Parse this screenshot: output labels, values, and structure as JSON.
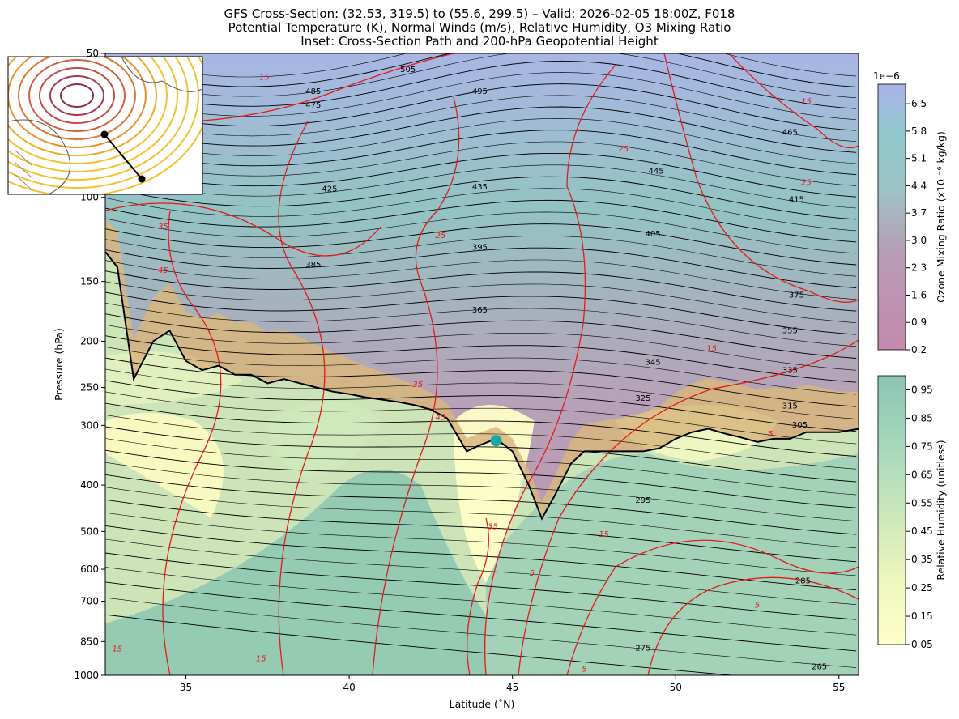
{
  "title_lines": [
    "GFS Cross-Section: (32.53, 319.5) to (55.6, 299.5) – Valid: 2026-02-05 18:00Z, F018",
    "Potential Temperature (K), Normal Winds (m/s), Relative Humidity, O3 Mixing Ratio",
    "Inset: Cross-Section Path and 200-hPa Geopotential Height"
  ],
  "colors": {
    "theta": "#000000",
    "wind": "#e31a1c",
    "rh_low": "#ffffcc",
    "rh_high": "#5ea99a",
    "ozone_low": "#c08bb0",
    "ozone_high": "#aab4e6"
  },
  "chart_data": {
    "type": "cross-section",
    "xlabel": "Latitude (˚N)",
    "ylabel": "Pressure (hPa)",
    "xlim": [
      32.53,
      55.6
    ],
    "ylim": [
      1000,
      50
    ],
    "y_scale": "log",
    "x_ticks": [
      35,
      40,
      45,
      50,
      55
    ],
    "y_ticks": [
      50,
      100,
      150,
      200,
      250,
      300,
      400,
      500,
      600,
      700,
      850,
      1000
    ],
    "theta_labels": [
      {
        "value": "505",
        "lat": 41.8,
        "p": 54
      },
      {
        "value": "495",
        "lat": 44.0,
        "p": 60
      },
      {
        "value": "485",
        "lat": 38.9,
        "p": 60
      },
      {
        "value": "475",
        "lat": 38.9,
        "p": 64
      },
      {
        "value": "465",
        "lat": 53.5,
        "p": 73
      },
      {
        "value": "445",
        "lat": 49.4,
        "p": 88
      },
      {
        "value": "435",
        "lat": 44.0,
        "p": 95
      },
      {
        "value": "425",
        "lat": 39.4,
        "p": 96
      },
      {
        "value": "415",
        "lat": 53.7,
        "p": 101
      },
      {
        "value": "405",
        "lat": 49.3,
        "p": 119
      },
      {
        "value": "395",
        "lat": 44.0,
        "p": 127
      },
      {
        "value": "385",
        "lat": 38.9,
        "p": 138
      },
      {
        "value": "375",
        "lat": 53.7,
        "p": 160
      },
      {
        "value": "365",
        "lat": 44.0,
        "p": 172
      },
      {
        "value": "355",
        "lat": 53.5,
        "p": 190
      },
      {
        "value": "345",
        "lat": 49.3,
        "p": 221
      },
      {
        "value": "335",
        "lat": 53.5,
        "p": 230
      },
      {
        "value": "325",
        "lat": 49.0,
        "p": 263
      },
      {
        "value": "315",
        "lat": 53.5,
        "p": 273
      },
      {
        "value": "305",
        "lat": 53.8,
        "p": 299
      },
      {
        "value": "295",
        "lat": 49.0,
        "p": 430
      },
      {
        "value": "285",
        "lat": 53.9,
        "p": 633
      },
      {
        "value": "275",
        "lat": 49.0,
        "p": 875
      },
      {
        "value": "265",
        "lat": 54.4,
        "p": 958
      }
    ],
    "wind_labels": [
      {
        "value": "15",
        "lat": 37.4,
        "p": 56
      },
      {
        "value": "15",
        "lat": 54.0,
        "p": 63
      },
      {
        "value": "25",
        "lat": 48.4,
        "p": 79
      },
      {
        "value": "25",
        "lat": 54.0,
        "p": 93
      },
      {
        "value": "35",
        "lat": 34.3,
        "p": 115
      },
      {
        "value": "25",
        "lat": 42.8,
        "p": 120
      },
      {
        "value": "45",
        "lat": 34.3,
        "p": 142
      },
      {
        "value": "15",
        "lat": 51.1,
        "p": 207
      },
      {
        "value": "35",
        "lat": 42.1,
        "p": 246
      },
      {
        "value": "45",
        "lat": 42.8,
        "p": 288
      },
      {
        "value": "5",
        "lat": 52.9,
        "p": 312
      },
      {
        "value": "35",
        "lat": 44.4,
        "p": 488
      },
      {
        "value": "15",
        "lat": 47.8,
        "p": 506
      },
      {
        "value": "5",
        "lat": 45.6,
        "p": 610
      },
      {
        "value": "5",
        "lat": 52.5,
        "p": 712
      },
      {
        "value": "15",
        "lat": 32.9,
        "p": 880
      },
      {
        "value": "15",
        "lat": 37.3,
        "p": 922
      },
      {
        "value": "5",
        "lat": 47.2,
        "p": 970
      }
    ],
    "tropopause": {
      "lat": [
        32.53,
        32.9,
        33.4,
        34.0,
        34.5,
        35.0,
        35.5,
        36.0,
        36.5,
        37.0,
        37.5,
        38.0,
        38.5,
        39.0,
        39.5,
        40.0,
        40.5,
        41.0,
        41.5,
        42.0,
        42.5,
        43.0,
        43.6,
        44.0,
        44.5,
        45.0,
        45.5,
        45.9,
        46.3,
        46.8,
        47.2,
        47.8,
        48.5,
        49.0,
        49.5,
        50.0,
        50.5,
        51.0,
        51.5,
        52.0,
        52.5,
        53.0,
        53.5,
        54.0,
        54.5,
        55.0,
        55.6
      ],
      "p": [
        130,
        140,
        240,
        200,
        190,
        220,
        230,
        225,
        235,
        235,
        245,
        240,
        245,
        250,
        255,
        258,
        262,
        265,
        268,
        272,
        278,
        290,
        340,
        330,
        320,
        340,
        400,
        470,
        420,
        360,
        340,
        340,
        340,
        340,
        335,
        320,
        310,
        305,
        312,
        318,
        325,
        320,
        320,
        310,
        310,
        310,
        305
      ]
    },
    "marker": {
      "lat": 44.5,
      "p": 323
    },
    "colorbars": [
      {
        "label": "Ozone Mixing Ratio (x10 ⁻⁶ kg/kg)",
        "offset_label": "1e−6",
        "ticks": [
          "0.2",
          "0.9",
          "1.6",
          "2.3",
          "3.0",
          "3.7",
          "4.4",
          "5.1",
          "5.8",
          "6.5"
        ],
        "range": [
          0.2,
          7.0
        ]
      },
      {
        "label": "Relative Humidity (unitless)",
        "ticks": [
          "0.05",
          "0.15",
          "0.25",
          "0.35",
          "0.45",
          "0.55",
          "0.65",
          "0.75",
          "0.85",
          "0.95"
        ],
        "range": [
          0.05,
          1.0
        ]
      }
    ],
    "inset": {
      "path": [
        {
          "lat": 55.6,
          "lon": 299.5
        },
        {
          "lat": 32.53,
          "lon": 319.5
        }
      ]
    }
  }
}
